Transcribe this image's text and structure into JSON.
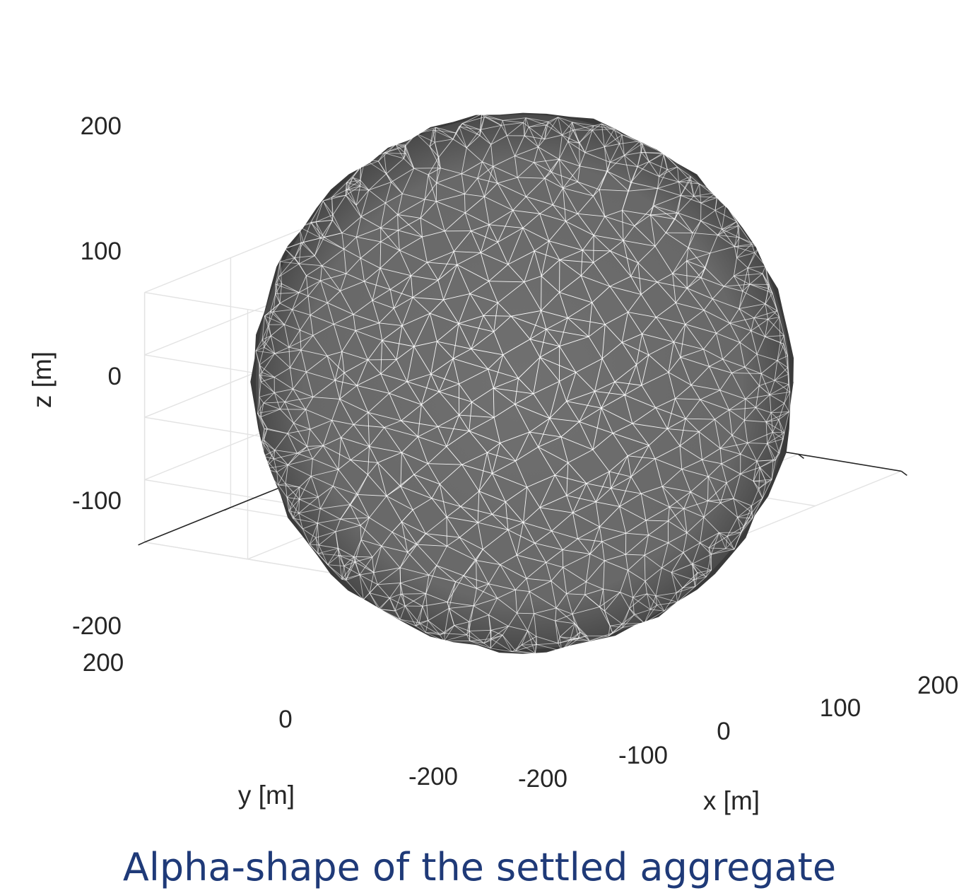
{
  "caption": "Alpha-shape of the settled aggregate",
  "colors": {
    "surface": "#6e6e6e",
    "surface_dark": "#3a3a3a",
    "edges": "#ffffff",
    "grid": "#e3e3e3",
    "axes": "#262626",
    "caption": "#1f3a78"
  },
  "chart_data": {
    "type": "3d-surface",
    "title": "",
    "xlabel": "x [m]",
    "ylabel": "y [m]",
    "zlabel": "z [m]",
    "xlim": [
      -200,
      200
    ],
    "ylim": [
      -200,
      200
    ],
    "zlim": [
      -200,
      200
    ],
    "x_ticks": [
      "-200",
      "-100",
      "0",
      "100",
      "200"
    ],
    "y_ticks": [
      "200",
      "0",
      "-200"
    ],
    "z_ticks": [
      "200",
      "100",
      "0",
      "-100",
      "-200"
    ],
    "grid": true,
    "shape": "alpha-shape triangulated surface, approximately a sphere",
    "sphere_center": [
      0,
      0,
      0
    ],
    "sphere_radius": 210
  }
}
